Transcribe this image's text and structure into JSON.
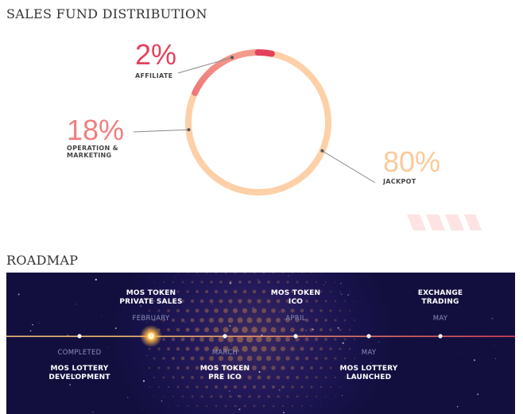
{
  "sections": {
    "fund_title": "SALES FUND DISTRIBUTION",
    "roadmap_title": "ROADMAP"
  },
  "chart_data": {
    "type": "pie",
    "title": "SALES FUND DISTRIBUTION",
    "slices": [
      {
        "label": "AFFILIATE",
        "value": 2,
        "display": "2%",
        "color": "#e3425c"
      },
      {
        "label": "OPERATION & MARKETING",
        "value": 18,
        "display": "18%",
        "color": "#f07f7f"
      },
      {
        "label": "JACKPOT",
        "value": 80,
        "display": "80%",
        "color": "#fdd0a8"
      }
    ]
  },
  "colors": {
    "track": "#fcd3ae",
    "timeline_left": "#f2c074",
    "timeline_right": "#e0445a"
  },
  "roadmap": {
    "milestones": [
      {
        "status": "COMPLETED",
        "title_lines": [
          "MOS LOTTERY",
          "DEVELOPMENT"
        ],
        "position": "below"
      },
      {
        "status": "FEBRUARY",
        "title_lines": [
          "MOS TOKEN",
          "PRIVATE SALES"
        ],
        "position": "above",
        "current": true
      },
      {
        "status": "MARCH",
        "title_lines": [
          "MOS TOKEN",
          "PRE ICO"
        ],
        "position": "below"
      },
      {
        "status": "APRIL",
        "title_lines": [
          "MOS TOKEN",
          "ICO"
        ],
        "position": "above"
      },
      {
        "status": "MAY",
        "title_lines": [
          "MOS LOTTERY",
          "LAUNCHED"
        ],
        "position": "below"
      },
      {
        "status": "MAY",
        "title_lines": [
          "EXCHANGE",
          "TRADING"
        ],
        "position": "above"
      }
    ]
  }
}
